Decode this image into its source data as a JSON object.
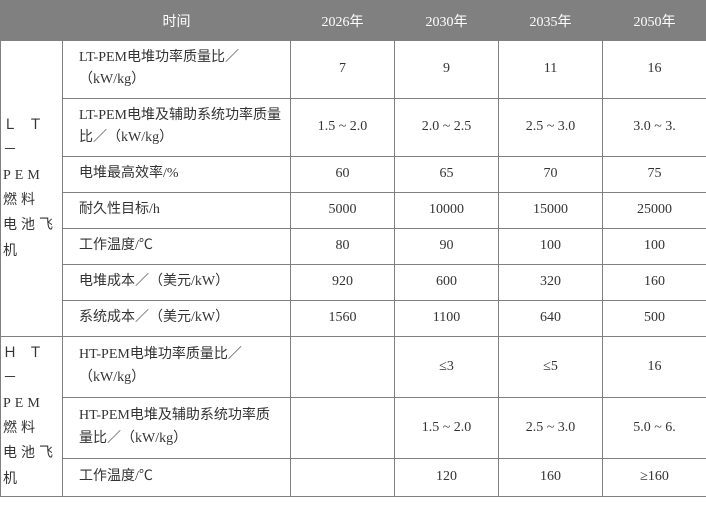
{
  "header": {
    "time_label": "时间",
    "years": [
      "2026年",
      "2030年",
      "2035年",
      "2050年"
    ]
  },
  "categories": [
    {
      "label": "Ｌ Ｔ －\nPEM燃料\n电池飞机",
      "rows": [
        {
          "param": "LT-PEM电堆功率质量比／（kW/kg）",
          "tall": true,
          "values": [
            "7",
            "9",
            "11",
            "16"
          ]
        },
        {
          "param": "LT-PEM电堆及辅助系统功率质量比／（kW/kg）",
          "tall": true,
          "values": [
            "1.5 ~ 2.0",
            "2.0 ~ 2.5",
            "2.5 ~ 3.0",
            "3.0 ~ 3."
          ]
        },
        {
          "param": "电堆最高效率/%",
          "tall": false,
          "values": [
            "60",
            "65",
            "70",
            "75"
          ]
        },
        {
          "param": "耐久性目标/h",
          "tall": false,
          "values": [
            "5000",
            "10000",
            "15000",
            "25000"
          ]
        },
        {
          "param": "工作温度/℃",
          "tall": false,
          "values": [
            "80",
            "90",
            "100",
            "100"
          ]
        },
        {
          "param": "电堆成本／（美元/kW）",
          "tall": false,
          "values": [
            "920",
            "600",
            "320",
            "160"
          ]
        },
        {
          "param": "系统成本／（美元/kW）",
          "tall": false,
          "values": [
            "1560",
            "1100",
            "640",
            "500"
          ]
        }
      ]
    },
    {
      "label": "Ｈ Ｔ －\nPEM燃料\n电池飞机",
      "rows": [
        {
          "param": "HT-PEM电堆功率质量比／（kW/kg）",
          "tall": true,
          "values": [
            "",
            "≤3",
            "≤5",
            "16"
          ]
        },
        {
          "param": "HT-PEM电堆及辅助系统功率质量比／（kW/kg）",
          "tall": true,
          "values": [
            "",
            "1.5 ~ 2.0",
            "2.5 ~ 3.0",
            "5.0 ~ 6."
          ]
        },
        {
          "param": "工作温度/℃",
          "tall": false,
          "values": [
            "",
            "120",
            "160",
            "≥160"
          ]
        }
      ]
    }
  ],
  "colors": {
    "header_bg": "#808080",
    "header_fg": "#ffffff",
    "border": "#808080",
    "text": "#333333",
    "bg": "#ffffff"
  }
}
